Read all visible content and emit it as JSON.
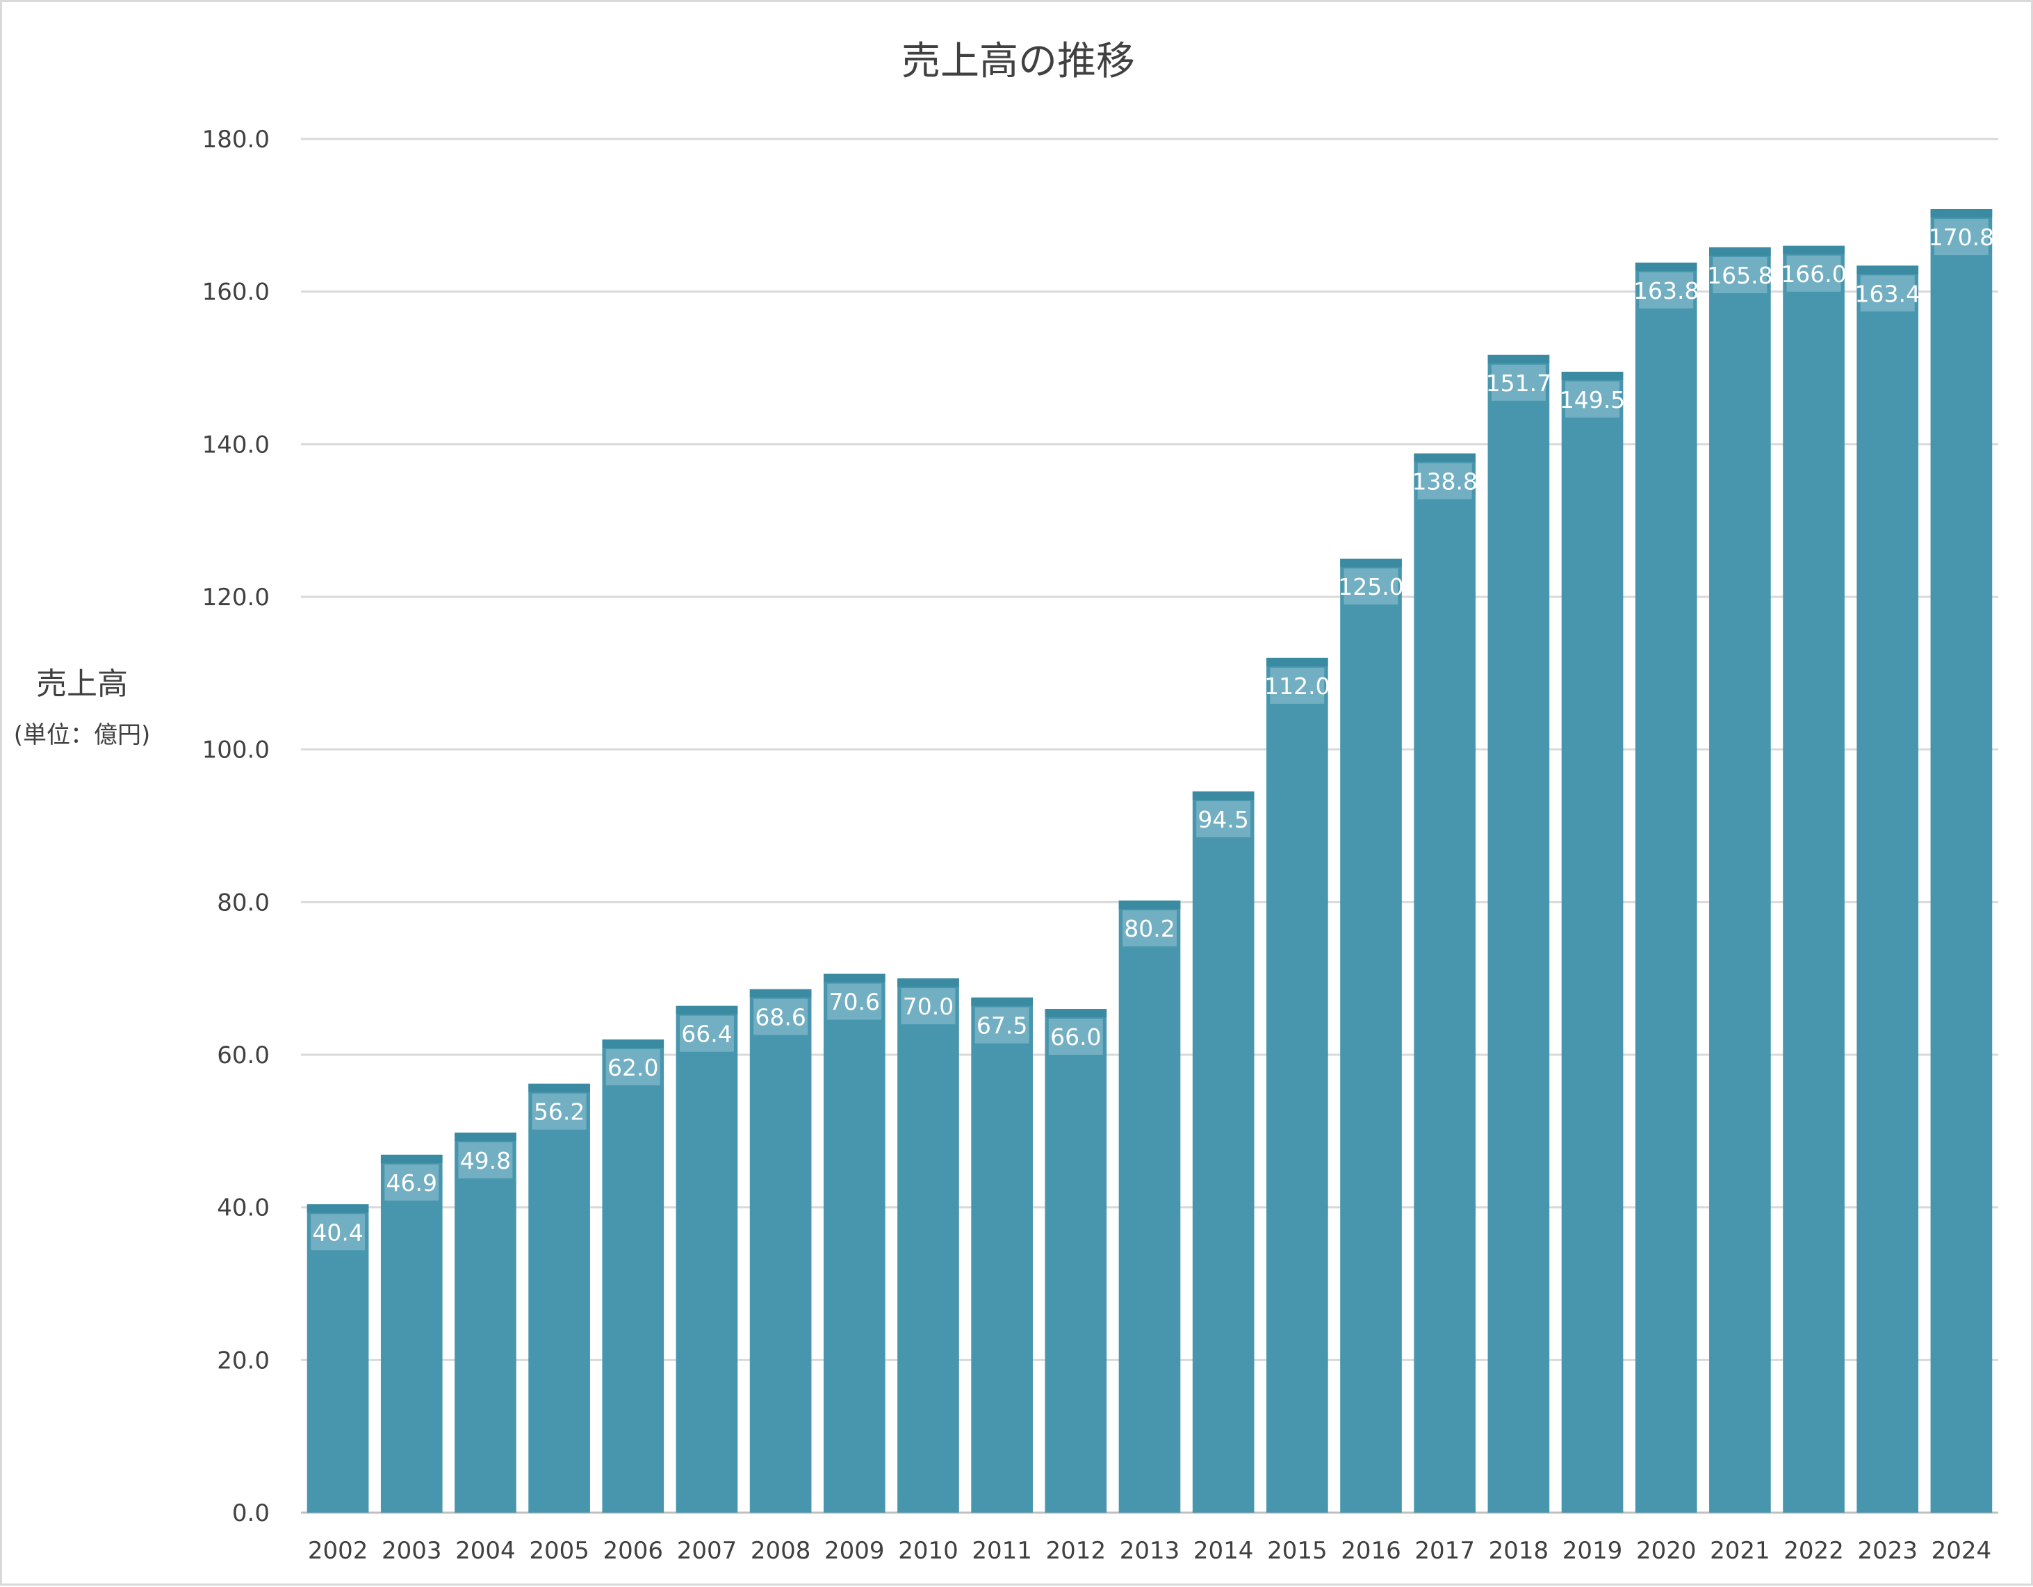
{
  "chart_data": {
    "type": "bar",
    "title": "売上高の推移",
    "ylabel": "売上高",
    "ylabel_unit": "(単位：億円)",
    "xlabel": "",
    "categories": [
      "2002",
      "2003",
      "2004",
      "2005",
      "2006",
      "2007",
      "2008",
      "2009",
      "2010",
      "2011",
      "2012",
      "2013",
      "2014",
      "2015",
      "2016",
      "2017",
      "2018",
      "2019",
      "2020",
      "2021",
      "2022",
      "2023",
      "2024"
    ],
    "values": [
      40.4,
      46.9,
      49.8,
      56.2,
      62.0,
      66.4,
      68.6,
      70.6,
      70.0,
      67.5,
      66.0,
      80.2,
      94.5,
      112.0,
      125.0,
      138.8,
      151.7,
      149.5,
      163.8,
      165.8,
      166.0,
      163.4,
      170.8
    ],
    "value_labels": [
      "40.4",
      "46.9",
      "49.8",
      "56.2",
      "62.0",
      "66.4",
      "68.6",
      "70.6",
      "70.0",
      "67.5",
      "66.0",
      "80.2",
      "94.5",
      "112.0",
      "125.0",
      "138.8",
      "151.7",
      "149.5",
      "163.8",
      "165.8",
      "166.0",
      "163.4",
      "170.8"
    ],
    "ylim": [
      0,
      180
    ],
    "yticks": [
      "0.0",
      "20.0",
      "40.0",
      "60.0",
      "80.0",
      "100.0",
      "120.0",
      "140.0",
      "160.0",
      "180.0"
    ],
    "grid": true,
    "legend": "none",
    "colors": {
      "bar": "#4796ae",
      "bar_top": "#3a8aa2",
      "label_bg": "#7ab4c6",
      "grid": "#d9d9d9",
      "text": "#404040"
    }
  }
}
